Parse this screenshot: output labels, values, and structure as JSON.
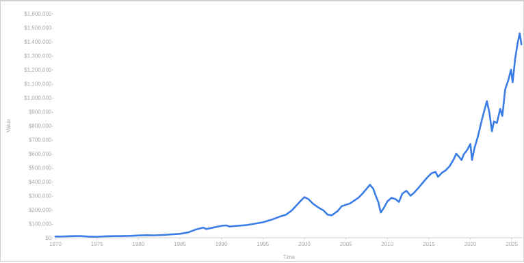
{
  "chart_data": {
    "type": "line",
    "xlabel": "Time",
    "ylabel": "Value",
    "xlim": [
      1970,
      2026.3
    ],
    "ylim": [
      0,
      1600000
    ],
    "x_ticks": [
      1970,
      1975,
      1980,
      1985,
      1990,
      1995,
      2000,
      2005,
      2010,
      2015,
      2020,
      2025
    ],
    "y_ticks": [
      0,
      100000,
      200000,
      300000,
      400000,
      500000,
      600000,
      700000,
      800000,
      900000,
      1000000,
      1100000,
      1200000,
      1300000,
      1400000,
      1500000,
      1600000
    ],
    "x_tick_labels": [
      "1970",
      "1975",
      "1980",
      "1985",
      "1990",
      "1995",
      "2000",
      "2005",
      "2010",
      "2015",
      "2020",
      "2025"
    ],
    "y_tick_labels": [
      "$0",
      "$100,000",
      "$200,000",
      "$300,000",
      "$400,000",
      "$500,000",
      "$600,000",
      "$700,000",
      "$800,000",
      "$900,000",
      "$1,000,000",
      "$1,100,000",
      "$1,200,000",
      "$1,300,000",
      "$1,400,000",
      "$1,500,000",
      "$1,600,000"
    ],
    "grid": false,
    "line_color": "#3b7de6",
    "series": [
      {
        "name": "",
        "points": [
          [
            1970.0,
            9000
          ],
          [
            1971.0,
            9500
          ],
          [
            1972.0,
            11000
          ],
          [
            1973.0,
            12000
          ],
          [
            1974.0,
            8500
          ],
          [
            1975.0,
            7500
          ],
          [
            1976.0,
            10000
          ],
          [
            1977.0,
            11000
          ],
          [
            1978.0,
            11500
          ],
          [
            1979.0,
            13000
          ],
          [
            1980.0,
            16000
          ],
          [
            1981.0,
            18000
          ],
          [
            1982.0,
            17000
          ],
          [
            1983.0,
            20000
          ],
          [
            1984.0,
            24000
          ],
          [
            1985.0,
            28000
          ],
          [
            1986.0,
            38000
          ],
          [
            1987.0,
            60000
          ],
          [
            1987.8,
            72000
          ],
          [
            1988.2,
            62000
          ],
          [
            1989.0,
            72000
          ],
          [
            1990.0,
            85000
          ],
          [
            1990.6,
            88000
          ],
          [
            1991.0,
            80000
          ],
          [
            1992.0,
            86000
          ],
          [
            1993.0,
            90000
          ],
          [
            1994.0,
            100000
          ],
          [
            1995.0,
            110000
          ],
          [
            1996.0,
            128000
          ],
          [
            1997.0,
            150000
          ],
          [
            1997.8,
            165000
          ],
          [
            1998.5,
            195000
          ],
          [
            1999.0,
            228000
          ],
          [
            1999.5,
            260000
          ],
          [
            2000.0,
            290000
          ],
          [
            2000.5,
            275000
          ],
          [
            2001.0,
            245000
          ],
          [
            2001.7,
            215000
          ],
          [
            2002.3,
            195000
          ],
          [
            2002.8,
            165000
          ],
          [
            2003.3,
            160000
          ],
          [
            2004.0,
            190000
          ],
          [
            2004.5,
            225000
          ],
          [
            2005.0,
            235000
          ],
          [
            2005.5,
            245000
          ],
          [
            2006.0,
            265000
          ],
          [
            2006.5,
            285000
          ],
          [
            2007.0,
            315000
          ],
          [
            2007.5,
            350000
          ],
          [
            2007.9,
            378000
          ],
          [
            2008.3,
            350000
          ],
          [
            2008.6,
            300000
          ],
          [
            2008.9,
            255000
          ],
          [
            2009.2,
            180000
          ],
          [
            2009.6,
            215000
          ],
          [
            2010.0,
            260000
          ],
          [
            2010.5,
            285000
          ],
          [
            2011.0,
            275000
          ],
          [
            2011.4,
            255000
          ],
          [
            2011.8,
            315000
          ],
          [
            2012.3,
            335000
          ],
          [
            2012.8,
            300000
          ],
          [
            2013.2,
            320000
          ],
          [
            2013.8,
            360000
          ],
          [
            2014.3,
            395000
          ],
          [
            2014.8,
            430000
          ],
          [
            2015.3,
            460000
          ],
          [
            2015.8,
            470000
          ],
          [
            2016.1,
            435000
          ],
          [
            2016.6,
            465000
          ],
          [
            2017.0,
            480000
          ],
          [
            2017.5,
            510000
          ],
          [
            2018.0,
            560000
          ],
          [
            2018.3,
            600000
          ],
          [
            2018.6,
            580000
          ],
          [
            2018.95,
            555000
          ],
          [
            2019.2,
            595000
          ],
          [
            2019.6,
            625000
          ],
          [
            2020.0,
            670000
          ],
          [
            2020.2,
            555000
          ],
          [
            2020.5,
            640000
          ],
          [
            2020.9,
            720000
          ],
          [
            2021.3,
            820000
          ],
          [
            2021.6,
            890000
          ],
          [
            2022.0,
            975000
          ],
          [
            2022.3,
            890000
          ],
          [
            2022.6,
            760000
          ],
          [
            2022.85,
            830000
          ],
          [
            2023.2,
            820000
          ],
          [
            2023.6,
            920000
          ],
          [
            2023.85,
            870000
          ],
          [
            2024.2,
            1060000
          ],
          [
            2024.6,
            1130000
          ],
          [
            2024.9,
            1200000
          ],
          [
            2025.1,
            1110000
          ],
          [
            2025.4,
            1280000
          ],
          [
            2025.7,
            1390000
          ],
          [
            2025.95,
            1460000
          ],
          [
            2026.15,
            1380000
          ]
        ]
      }
    ]
  }
}
